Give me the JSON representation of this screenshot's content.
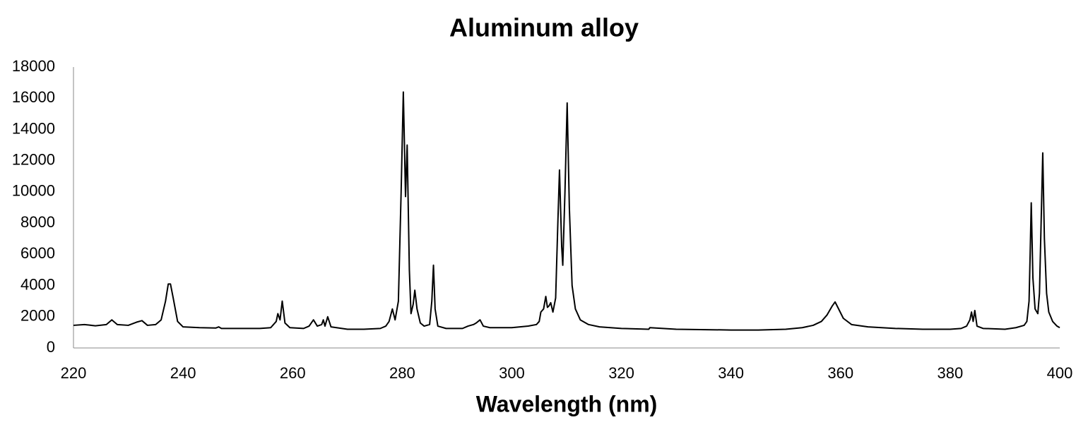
{
  "chart_data": {
    "type": "line",
    "title": "Aluminum alloy",
    "x_label": "Wavelength (nm)",
    "x": [
      220,
      222,
      224,
      226,
      227,
      228,
      230,
      231.5,
      232.5,
      233.5,
      235,
      236,
      236.8,
      237.3,
      237.7,
      238.2,
      239,
      240,
      243,
      246,
      246.5,
      247,
      250,
      254,
      256,
      257,
      257.3,
      257.7,
      258.1,
      258.6,
      259.5,
      262,
      263,
      263.8,
      264.5,
      265.3,
      265.6,
      265.9,
      266.4,
      267,
      270,
      273,
      276,
      277,
      277.6,
      278.2,
      278.7,
      279.3,
      279.8,
      280.2,
      280.6,
      280.9,
      281.3,
      281.6,
      282,
      282.3,
      282.7,
      283.3,
      284,
      285,
      285.4,
      285.7,
      286,
      286.5,
      288,
      291,
      292,
      293,
      293.5,
      294.2,
      294.8,
      296,
      300,
      303,
      304.5,
      305,
      305.3,
      305.8,
      306.2,
      306.5,
      306.8,
      307.1,
      307.5,
      308,
      308.4,
      308.7,
      309.1,
      309.3,
      309.7,
      310.1,
      310.5,
      311,
      311.6,
      312.5,
      314,
      316,
      320,
      325,
      325.2,
      330,
      340,
      345,
      350,
      353,
      355,
      356.5,
      357.5,
      358.5,
      359,
      359.5,
      360.5,
      362,
      365,
      370,
      375,
      380,
      382,
      383,
      383.6,
      383.9,
      384.2,
      384.5,
      384.9,
      386,
      390,
      392,
      393.5,
      394,
      394.4,
      394.6,
      394.8,
      395.1,
      395.5,
      396,
      396.3,
      396.6,
      396.9,
      397.2,
      397.6,
      398,
      398.7,
      399.5,
      400
    ],
    "y": [
      1450,
      1500,
      1420,
      1500,
      1800,
      1500,
      1450,
      1650,
      1750,
      1450,
      1500,
      1800,
      3000,
      4100,
      4100,
      3200,
      1700,
      1350,
      1300,
      1280,
      1350,
      1250,
      1250,
      1250,
      1300,
      1700,
      2200,
      1800,
      3000,
      1600,
      1300,
      1250,
      1400,
      1800,
      1400,
      1500,
      1800,
      1400,
      2000,
      1350,
      1200,
      1200,
      1250,
      1400,
      1700,
      2500,
      1800,
      3000,
      10000,
      16400,
      9700,
      13000,
      5000,
      2200,
      2800,
      3700,
      2500,
      1600,
      1400,
      1500,
      3000,
      5300,
      2500,
      1400,
      1250,
      1250,
      1400,
      1500,
      1600,
      1800,
      1400,
      1300,
      1300,
      1400,
      1500,
      1700,
      2300,
      2500,
      3300,
      2600,
      2700,
      2900,
      2300,
      3200,
      8000,
      11400,
      6500,
      5300,
      10000,
      15700,
      9000,
      4000,
      2500,
      1800,
      1500,
      1350,
      1250,
      1200,
      1300,
      1200,
      1150,
      1150,
      1200,
      1300,
      1450,
      1700,
      2100,
      2700,
      2950,
      2600,
      1900,
      1500,
      1350,
      1250,
      1200,
      1200,
      1250,
      1400,
      1800,
      2300,
      1700,
      2400,
      1400,
      1250,
      1200,
      1300,
      1450,
      1700,
      3000,
      6000,
      9300,
      4500,
      2500,
      2200,
      3500,
      8000,
      12500,
      7000,
      3500,
      2300,
      1700,
      1400,
      1300
    ],
    "color": "#000000",
    "xlim": [
      220,
      400
    ],
    "xticks": [
      220,
      240,
      260,
      280,
      300,
      320,
      340,
      360,
      380,
      400
    ],
    "ylim": [
      0,
      18000
    ],
    "yticks": [
      0,
      2000,
      4000,
      6000,
      8000,
      10000,
      12000,
      14000,
      16000,
      18000
    ],
    "grid": false
  }
}
